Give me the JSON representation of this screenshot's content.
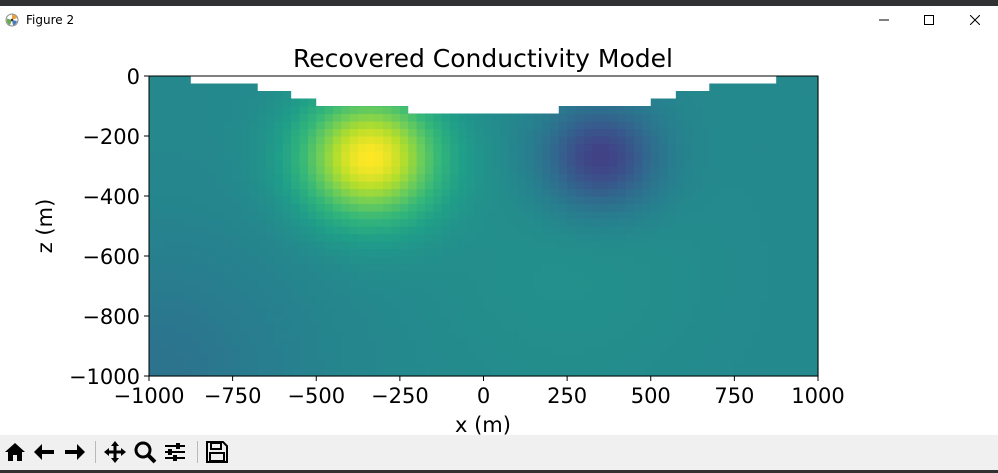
{
  "window": {
    "title": "Figure 2"
  },
  "toolbar": {
    "icons": [
      "home-icon",
      "back-icon",
      "forward-icon",
      "pan-icon",
      "zoom-icon",
      "configure-subplots-icon",
      "save-icon"
    ]
  },
  "chart_data": {
    "type": "heatmap",
    "title": "Recovered Conductivity Model",
    "xlabel": "x (m)",
    "ylabel": "z (m)",
    "xlim": [
      -1000,
      1000
    ],
    "ylim": [
      -1000,
      0
    ],
    "xticks": [
      "−1000",
      "−750",
      "−500",
      "−250",
      "0",
      "250",
      "500",
      "750",
      "1000"
    ],
    "xtick_values": [
      -1000,
      -750,
      -500,
      -250,
      0,
      250,
      500,
      750,
      1000
    ],
    "yticks": [
      "0",
      "−200",
      "−400",
      "−600",
      "−800",
      "−1000"
    ],
    "ytick_values": [
      0,
      -200,
      -400,
      -600,
      -800,
      -1000
    ],
    "colormap": "viridis",
    "background_level": 0.47,
    "anomalies": [
      {
        "kind": "conductive",
        "x": -340,
        "z": -270,
        "level": 1.0
      },
      {
        "kind": "resistive",
        "x": 350,
        "z": -270,
        "level": 0.18
      }
    ],
    "topography": {
      "x": [
        -1000,
        -875,
        -875,
        -675,
        -675,
        -575,
        -575,
        -500,
        -500,
        -225,
        -225,
        225,
        225,
        500,
        500,
        575,
        575,
        675,
        675,
        875,
        875,
        1000
      ],
      "z": [
        0,
        0,
        -25,
        -25,
        -50,
        -50,
        -75,
        -75,
        -100,
        -100,
        -125,
        -125,
        -100,
        -100,
        -75,
        -75,
        -50,
        -50,
        -25,
        -25,
        0,
        0
      ]
    }
  }
}
